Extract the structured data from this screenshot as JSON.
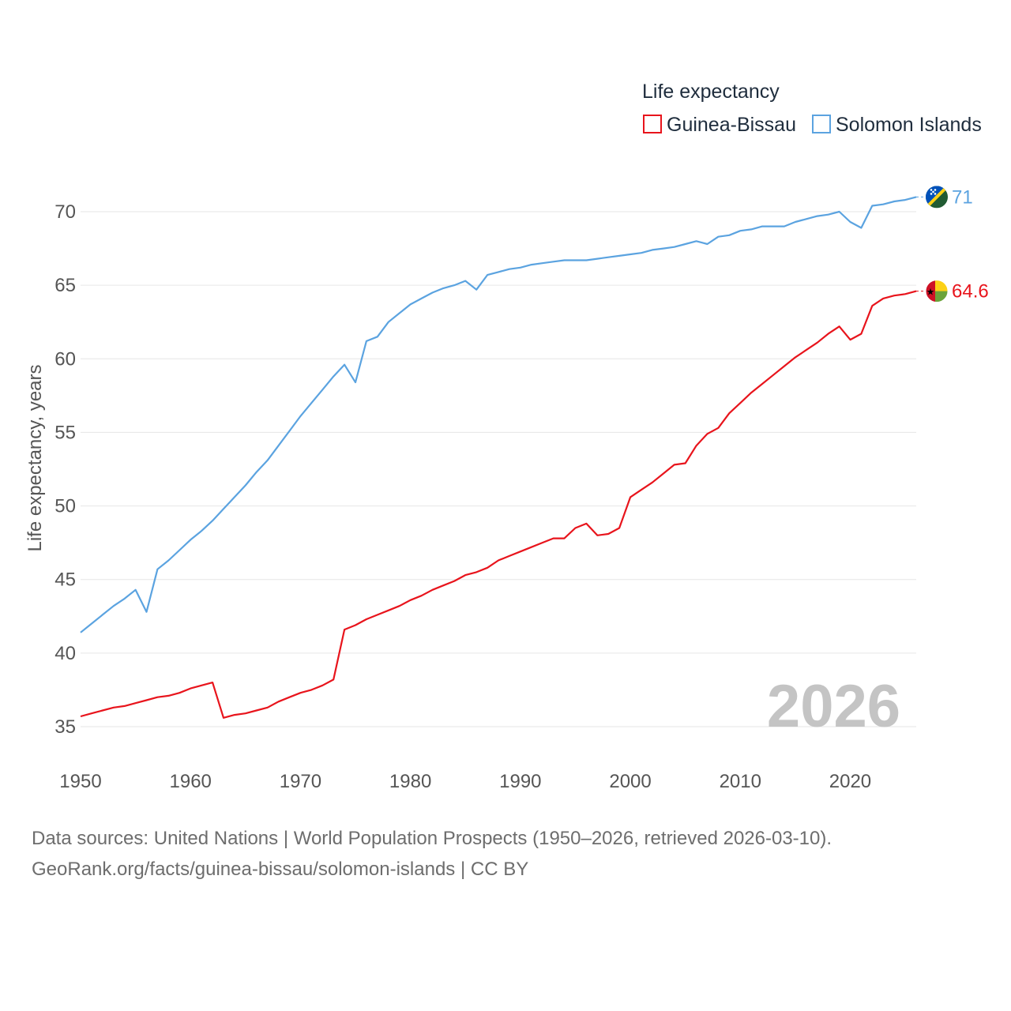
{
  "chart_data": {
    "type": "line",
    "legend_title": "Life expectancy",
    "ylabel": "Life expectancy, years",
    "xlabel": "",
    "xlim": [
      1950,
      2026
    ],
    "ylim": [
      33,
      73
    ],
    "x_ticks": [
      1950,
      1960,
      1970,
      1980,
      1990,
      2000,
      2010,
      2020
    ],
    "y_ticks": [
      35,
      40,
      45,
      50,
      55,
      60,
      65,
      70
    ],
    "current_year": "2026",
    "legend_position": "top-right",
    "series": [
      {
        "name": "Guinea-Bissau",
        "color": "#e8141c",
        "end_label": "64.6",
        "flag": "guinea-bissau-flag-icon",
        "years": [
          1950,
          1951,
          1952,
          1953,
          1954,
          1955,
          1956,
          1957,
          1958,
          1959,
          1960,
          1961,
          1962,
          1963,
          1964,
          1965,
          1966,
          1967,
          1968,
          1969,
          1970,
          1971,
          1972,
          1973,
          1974,
          1975,
          1976,
          1977,
          1978,
          1979,
          1980,
          1981,
          1982,
          1983,
          1984,
          1985,
          1986,
          1987,
          1988,
          1989,
          1990,
          1991,
          1992,
          1993,
          1994,
          1995,
          1996,
          1997,
          1998,
          1999,
          2000,
          2001,
          2002,
          2003,
          2004,
          2005,
          2006,
          2007,
          2008,
          2009,
          2010,
          2011,
          2012,
          2013,
          2014,
          2015,
          2016,
          2017,
          2018,
          2019,
          2020,
          2021,
          2022,
          2023,
          2024,
          2025,
          2026
        ],
        "values": [
          35.7,
          35.9,
          36.1,
          36.3,
          36.4,
          36.6,
          36.8,
          37.0,
          37.1,
          37.3,
          37.6,
          37.8,
          38.0,
          35.6,
          35.8,
          35.9,
          36.1,
          36.3,
          36.7,
          37.0,
          37.3,
          37.5,
          37.8,
          38.2,
          41.6,
          41.9,
          42.3,
          42.6,
          42.9,
          43.2,
          43.6,
          43.9,
          44.3,
          44.6,
          44.9,
          45.3,
          45.5,
          45.8,
          46.3,
          46.6,
          46.9,
          47.2,
          47.5,
          47.8,
          47.8,
          48.5,
          48.8,
          48.0,
          48.1,
          48.5,
          50.6,
          51.1,
          51.6,
          52.2,
          52.8,
          52.9,
          54.1,
          54.9,
          55.3,
          56.3,
          57.0,
          57.7,
          58.3,
          58.9,
          59.5,
          60.1,
          60.6,
          61.1,
          61.7,
          62.2,
          61.3,
          61.7,
          63.6,
          64.1,
          64.3,
          64.4,
          64.6
        ]
      },
      {
        "name": "Solomon Islands",
        "color": "#5ba3e0",
        "end_label": "71",
        "flag": "solomon-islands-flag-icon",
        "years": [
          1950,
          1951,
          1952,
          1953,
          1954,
          1955,
          1956,
          1957,
          1958,
          1959,
          1960,
          1961,
          1962,
          1963,
          1964,
          1965,
          1966,
          1967,
          1968,
          1969,
          1970,
          1971,
          1972,
          1973,
          1974,
          1975,
          1976,
          1977,
          1978,
          1979,
          1980,
          1981,
          1982,
          1983,
          1984,
          1985,
          1986,
          1987,
          1988,
          1989,
          1990,
          1991,
          1992,
          1993,
          1994,
          1995,
          1996,
          1997,
          1998,
          1999,
          2000,
          2001,
          2002,
          2003,
          2004,
          2005,
          2006,
          2007,
          2008,
          2009,
          2010,
          2011,
          2012,
          2013,
          2014,
          2015,
          2016,
          2017,
          2018,
          2019,
          2020,
          2021,
          2022,
          2023,
          2024,
          2025,
          2026
        ],
        "values": [
          41.4,
          42.0,
          42.6,
          43.2,
          43.7,
          44.3,
          42.8,
          45.7,
          46.3,
          47.0,
          47.7,
          48.3,
          49.0,
          49.8,
          50.6,
          51.4,
          52.3,
          53.1,
          54.1,
          55.1,
          56.1,
          57.0,
          57.9,
          58.8,
          59.6,
          58.4,
          61.2,
          61.5,
          62.5,
          63.1,
          63.7,
          64.1,
          64.5,
          64.8,
          65.0,
          65.3,
          64.7,
          65.7,
          65.9,
          66.1,
          66.2,
          66.4,
          66.5,
          66.6,
          66.7,
          66.7,
          66.7,
          66.8,
          66.9,
          67.0,
          67.1,
          67.2,
          67.4,
          67.5,
          67.6,
          67.8,
          68.0,
          67.8,
          68.3,
          68.4,
          68.7,
          68.8,
          69.0,
          69.0,
          69.0,
          69.3,
          69.5,
          69.7,
          69.8,
          70.0,
          69.3,
          68.9,
          70.4,
          70.5,
          70.7,
          70.8,
          71.0
        ]
      }
    ]
  },
  "footer": {
    "source_line": "Data sources: United Nations | World Population Prospects (1950–2026, retrieved 2026-03-10).",
    "attribution_line": "GeoRank.org/facts/guinea-bissau/solomon-islands | CC BY"
  }
}
